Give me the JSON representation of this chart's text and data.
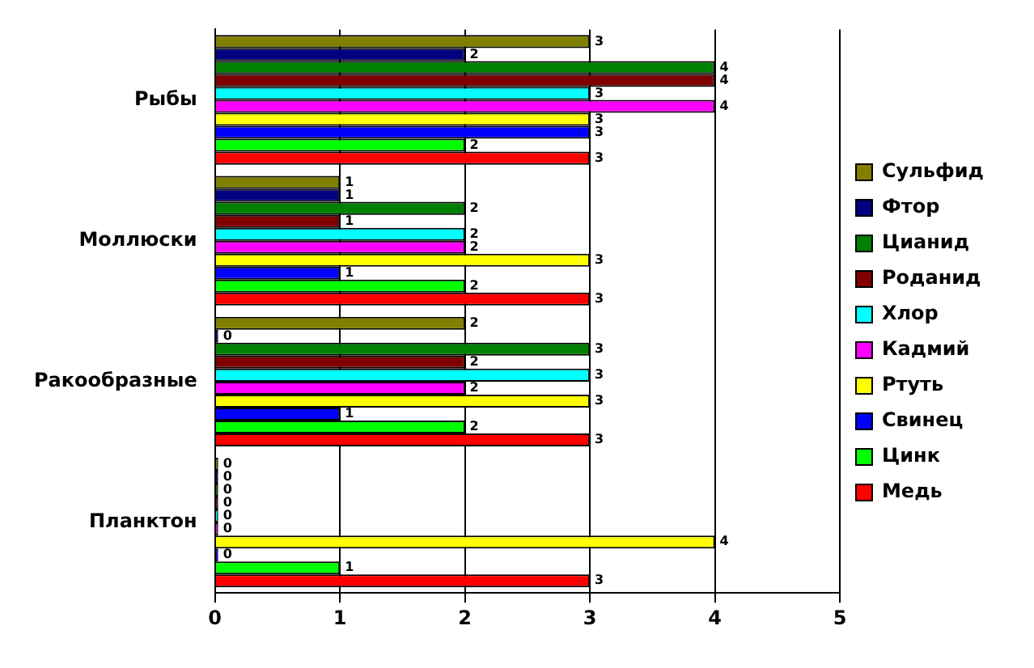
{
  "chart_data": {
    "type": "bar",
    "orientation": "horizontal",
    "categories": [
      "Рыбы",
      "Моллюски",
      "Ракообразные",
      "Планктон"
    ],
    "series": [
      {
        "name": "Сульфид",
        "color": "#808000",
        "values": [
          3,
          1,
          2,
          0
        ]
      },
      {
        "name": "Фтор",
        "color": "#000080",
        "values": [
          2,
          1,
          0,
          0
        ]
      },
      {
        "name": "Цианид",
        "color": "#008000",
        "values": [
          4,
          2,
          3,
          0
        ]
      },
      {
        "name": "Роданид",
        "color": "#800000",
        "values": [
          4,
          1,
          2,
          0
        ]
      },
      {
        "name": "Хлор",
        "color": "#00ffff",
        "values": [
          3,
          2,
          3,
          0
        ]
      },
      {
        "name": "Кадмий",
        "color": "#ff00ff",
        "values": [
          4,
          2,
          2,
          0
        ]
      },
      {
        "name": "Ртуть",
        "color": "#ffff00",
        "values": [
          3,
          3,
          3,
          4
        ]
      },
      {
        "name": "Свинец",
        "color": "#0000ff",
        "values": [
          3,
          1,
          1,
          0
        ]
      },
      {
        "name": "Цинк",
        "color": "#00ff00",
        "values": [
          2,
          2,
          2,
          1
        ]
      },
      {
        "name": "Медь",
        "color": "#ff0000",
        "values": [
          3,
          3,
          3,
          3
        ]
      }
    ],
    "xlim": [
      0,
      5
    ],
    "xticks": [
      0,
      1,
      2,
      3,
      4,
      5
    ],
    "grid": "x",
    "legend": "right",
    "data_labels": true
  }
}
